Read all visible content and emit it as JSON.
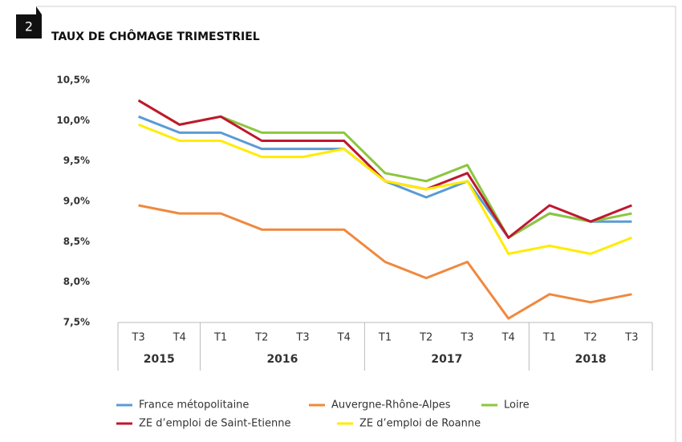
{
  "badge": "2",
  "chart_data": {
    "type": "line",
    "title": "TAUX DE CHÔMAGE TRIMESTRIEL",
    "groups": [
      {
        "name": "2015",
        "categories": [
          "T3",
          "T4"
        ]
      },
      {
        "name": "2016",
        "categories": [
          "T1",
          "T2",
          "T3",
          "T4"
        ]
      },
      {
        "name": "2017",
        "categories": [
          "T1",
          "T2",
          "T3",
          "T4"
        ]
      },
      {
        "name": "2018",
        "categories": [
          "T1",
          "T2",
          "T3"
        ]
      }
    ],
    "series": [
      {
        "name": "France métopolitaine",
        "color": "#5b9bd5",
        "values": [
          10.05,
          9.85,
          9.85,
          9.65,
          9.65,
          9.65,
          9.25,
          9.05,
          9.25,
          8.55,
          8.85,
          8.75,
          8.75
        ]
      },
      {
        "name": "Auvergne-Rhône-Alpes",
        "color": "#f0883e",
        "values": [
          8.95,
          8.85,
          8.85,
          8.65,
          8.65,
          8.65,
          8.25,
          8.05,
          8.25,
          7.55,
          7.85,
          7.75,
          7.85
        ]
      },
      {
        "name": "Loire",
        "color": "#8cc63f",
        "values": [
          10.25,
          9.95,
          10.05,
          9.85,
          9.85,
          9.85,
          9.35,
          9.25,
          9.45,
          8.55,
          8.85,
          8.75,
          8.85
        ]
      },
      {
        "name": "ZE d’emploi de Saint-Etienne",
        "color": "#c0172f",
        "values": [
          10.25,
          9.95,
          10.05,
          9.75,
          9.75,
          9.75,
          9.25,
          9.15,
          9.35,
          8.55,
          8.95,
          8.75,
          8.95
        ]
      },
      {
        "name": "ZE d’emploi de Roanne",
        "color": "#ffec00",
        "values": [
          9.95,
          9.75,
          9.75,
          9.55,
          9.55,
          9.65,
          9.25,
          9.15,
          9.25,
          8.35,
          8.45,
          8.35,
          8.55
        ]
      }
    ],
    "ylim": [
      7.5,
      10.5
    ],
    "yticks": [
      {
        "value": 7.5,
        "label": "7,5%"
      },
      {
        "value": 8,
        "label": "8,0%"
      },
      {
        "value": 8.5,
        "label": "8,5%"
      },
      {
        "value": 9,
        "label": "9,0%"
      },
      {
        "value": 9.5,
        "label": "9,5%"
      },
      {
        "value": 10,
        "label": "10,0%"
      },
      {
        "value": 10.5,
        "label": "10,5%"
      }
    ],
    "grid": false
  }
}
